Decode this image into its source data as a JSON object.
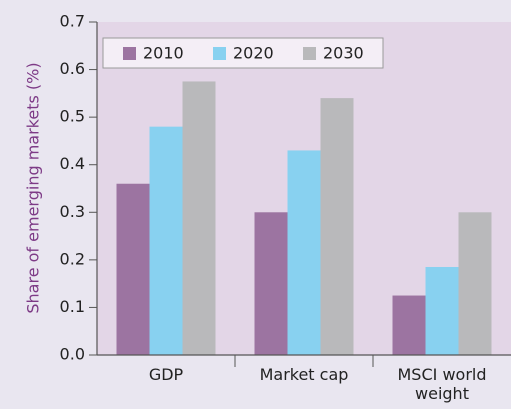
{
  "chart_data": {
    "type": "bar",
    "y_label": "Share of emerging markets (%)",
    "categories": [
      "GDP",
      "Market cap",
      "MSCI world weight"
    ],
    "series": [
      {
        "name": "2010",
        "color": "#9c74a1",
        "values": [
          0.36,
          0.3,
          0.125
        ]
      },
      {
        "name": "2020",
        "color": "#88d1f0",
        "values": [
          0.48,
          0.43,
          0.185
        ]
      },
      {
        "name": "2030",
        "color": "#b9b9bb",
        "values": [
          0.575,
          0.54,
          0.3
        ]
      }
    ],
    "ylim": [
      0,
      0.7
    ],
    "yticks": [
      {
        "value": 0,
        "label": "0.0"
      },
      0.1,
      0.2,
      0.3,
      0.4,
      0.5,
      0.6,
      0.7
    ],
    "legend": "top-left"
  }
}
